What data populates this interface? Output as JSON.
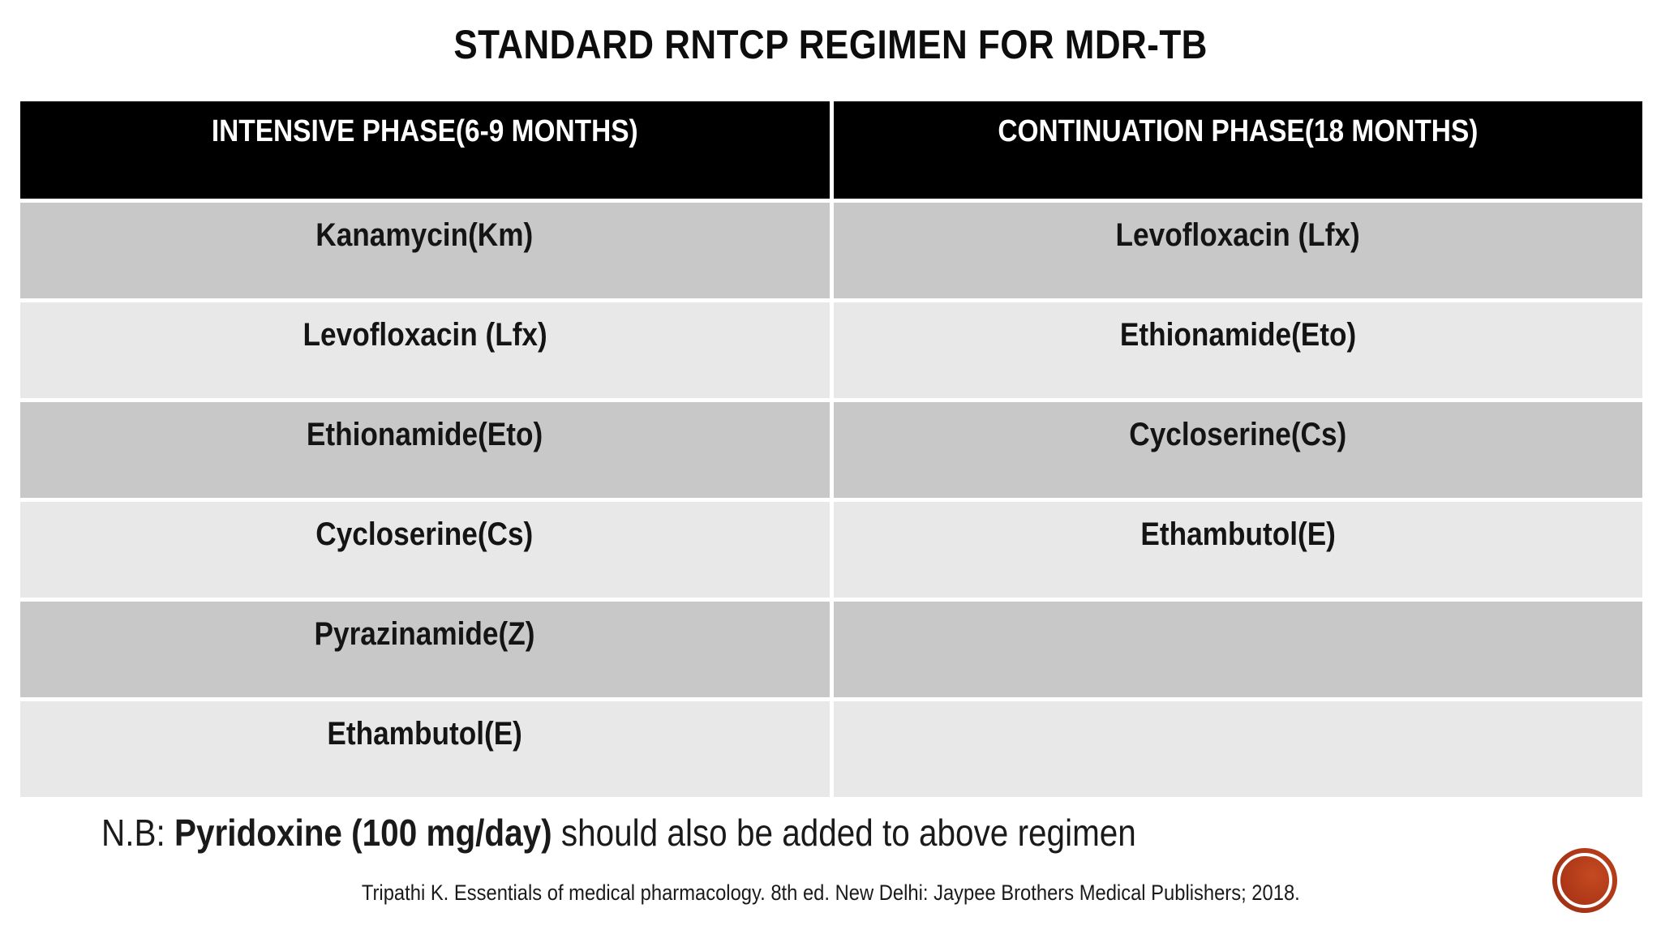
{
  "slide": {
    "title": "STANDARD RNTCP REGIMEN FOR MDR-TB",
    "table": {
      "headers": [
        "INTENSIVE PHASE(6-9 MONTHS)",
        "CONTINUATION PHASE(18 MONTHS)"
      ],
      "rows": [
        [
          "Kanamycin(Km)",
          "Levofloxacin (Lfx)"
        ],
        [
          "Levofloxacin (Lfx)",
          "Ethionamide(Eto)"
        ],
        [
          "Ethionamide(Eto)",
          "Cycloserine(Cs)"
        ],
        [
          "Cycloserine(Cs)",
          "Ethambutol(E)"
        ],
        [
          "Pyrazinamide(Z)",
          ""
        ],
        [
          "Ethambutol(E)",
          ""
        ]
      ],
      "colors": {
        "header_bg": "#000000",
        "header_text": "#ffffff",
        "row_dark": "#c8c8c8",
        "row_light": "#e8e8e8",
        "gap": "#ffffff"
      }
    },
    "note": {
      "prefix": "N.B: ",
      "bold": "Pyridoxine (100 mg/day)",
      "rest": " should also be added to above regimen"
    },
    "citation": "Tripathi K. Essentials of medical pharmacology. 8th ed. New Delhi: Jaypee Brothers Medical Publishers; 2018.",
    "logo_color": "#ad3718"
  }
}
